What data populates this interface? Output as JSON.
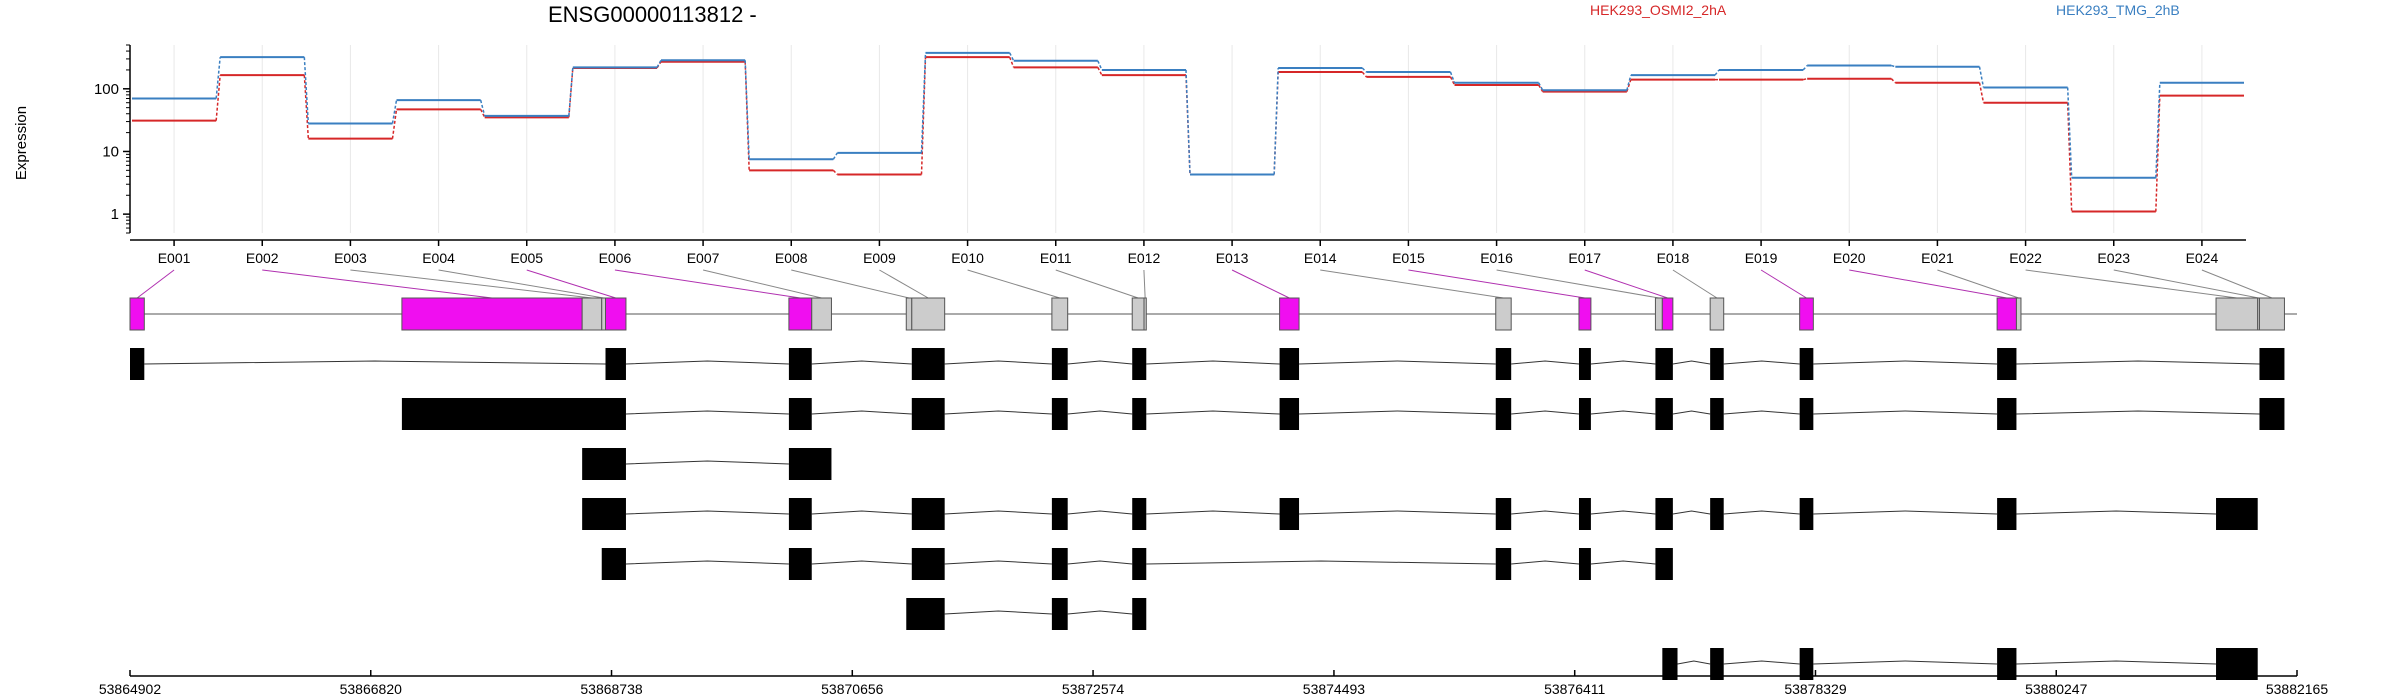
{
  "chart_data": {
    "type": "line",
    "title": "ENSG00000113812 -",
    "ylabel": "Expression",
    "yscale": "log",
    "ylim": [
      0.5,
      500
    ],
    "yticks": [
      1,
      10,
      100
    ],
    "grid": "vertical",
    "legend_placement": "top",
    "exons": [
      "E001",
      "E002",
      "E003",
      "E004",
      "E005",
      "E006",
      "E007",
      "E008",
      "E009",
      "E010",
      "E011",
      "E012",
      "E013",
      "E014",
      "E015",
      "E016",
      "E017",
      "E018",
      "E019",
      "E020",
      "E021",
      "E022",
      "E023",
      "E024"
    ],
    "series": [
      {
        "name": "HEK293_OSMI2_2hA",
        "color": "#d62728",
        "values": [
          31,
          165,
          16,
          47,
          35,
          215,
          270,
          5,
          4.3,
          320,
          220,
          165,
          4.3,
          185,
          155,
          115,
          90,
          140,
          140,
          145,
          125,
          60,
          1.1,
          78
        ]
      },
      {
        "name": "HEK293_TMG_2hB",
        "color": "#3a7fc1",
        "values": [
          70,
          320,
          28,
          66,
          37,
          220,
          285,
          7.5,
          9.5,
          375,
          280,
          200,
          4.3,
          215,
          185,
          125,
          95,
          165,
          200,
          235,
          225,
          105,
          3.8,
          125
        ]
      }
    ],
    "significant_color": "#f00ef0",
    "genomic_ticks": [
      "53864902",
      "53866820",
      "53868738",
      "53870656",
      "53872574",
      "53874493",
      "53876411",
      "53878329",
      "53880247",
      "53882165"
    ],
    "exon_coords": [
      [
        53864902,
        53865016
      ],
      [
        53867068,
        53868504
      ],
      [
        53868504,
        53868660
      ],
      [
        53868660,
        53868690
      ],
      [
        53868690,
        53868853
      ],
      [
        53870151,
        53870333
      ],
      [
        53870333,
        53870490
      ],
      [
        53871086,
        53871130
      ],
      [
        53871130,
        53871392
      ],
      [
        53872246,
        53872372
      ],
      [
        53872886,
        53872980
      ],
      [
        53872980,
        53872998
      ],
      [
        53874060,
        53874215
      ],
      [
        53875782,
        53875905
      ],
      [
        53876445,
        53876540
      ],
      [
        53877054,
        53877109
      ],
      [
        53877109,
        53877193
      ],
      [
        53877490,
        53877598
      ],
      [
        53878203,
        53878312
      ],
      [
        53879776,
        53879930
      ],
      [
        53879930,
        53879966
      ],
      [
        53881520,
        53881852
      ],
      [
        53881852,
        53881866
      ],
      [
        53881866,
        53882065
      ]
    ],
    "exon_significant": [
      true,
      true,
      false,
      false,
      true,
      true,
      false,
      false,
      false,
      false,
      false,
      false,
      true,
      false,
      true,
      false,
      true,
      false,
      true,
      true,
      false,
      false,
      false,
      false
    ],
    "exon_to_block": [
      0,
      1,
      2,
      4,
      5,
      6,
      7,
      8,
      9,
      10,
      11,
      12,
      13,
      14,
      15,
      16,
      17,
      18,
      19,
      20,
      22,
      23,
      24,
      24
    ],
    "transcripts": [
      [
        [
          53864902,
          53865016
        ],
        [
          53868690,
          53868853
        ],
        [
          53870151,
          53870333
        ],
        [
          53871392,
          53871130
        ],
        [
          53872246,
          53872372
        ],
        [
          53872886,
          53872998
        ],
        [
          53874060,
          53874215
        ],
        [
          53875782,
          53875905
        ],
        [
          53876445,
          53876540
        ],
        [
          53877054,
          53877193
        ],
        [
          53877490,
          53877598
        ],
        [
          53878203,
          53878312
        ],
        [
          53879776,
          53879930
        ],
        [
          53881866,
          53882065
        ]
      ],
      [
        [
          53867068,
          53868853
        ],
        [
          53870151,
          53870333
        ],
        [
          53871130,
          53871392
        ],
        [
          53872246,
          53872372
        ],
        [
          53872886,
          53872998
        ],
        [
          53874060,
          53874215
        ],
        [
          53875782,
          53875905
        ],
        [
          53876445,
          53876540
        ],
        [
          53877054,
          53877193
        ],
        [
          53877490,
          53877598
        ],
        [
          53878203,
          53878312
        ],
        [
          53879776,
          53879930
        ],
        [
          53881866,
          53882065
        ]
      ],
      [
        [
          53868504,
          53868853
        ],
        [
          53870151,
          53870490
        ]
      ],
      [
        [
          53868504,
          53868853
        ],
        [
          53870151,
          53870333
        ],
        [
          53871130,
          53871392
        ],
        [
          53872246,
          53872372
        ],
        [
          53872886,
          53872998
        ],
        [
          53874060,
          53874215
        ],
        [
          53875782,
          53875905
        ],
        [
          53876445,
          53876540
        ],
        [
          53877054,
          53877193
        ],
        [
          53877490,
          53877598
        ],
        [
          53878203,
          53878312
        ],
        [
          53879776,
          53879930
        ],
        [
          53881520,
          53881852
        ]
      ],
      [
        [
          53868660,
          53868853
        ],
        [
          53870151,
          53870333
        ],
        [
          53871130,
          53871392
        ],
        [
          53872246,
          53872372
        ],
        [
          53872886,
          53872998
        ],
        [
          53875782,
          53875905
        ],
        [
          53876445,
          53876540
        ],
        [
          53877054,
          53877193
        ]
      ],
      [
        [
          53871086,
          53871392
        ],
        [
          53872246,
          53872372
        ],
        [
          53872886,
          53872998
        ]
      ],
      [
        [
          53877109,
          53877230
        ],
        [
          53877490,
          53877598
        ],
        [
          53878203,
          53878312
        ],
        [
          53879776,
          53879930
        ],
        [
          53881520,
          53881852
        ]
      ]
    ]
  }
}
